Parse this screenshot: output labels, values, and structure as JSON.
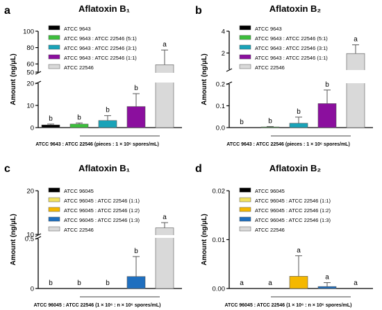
{
  "chart_data": [
    {
      "panel": "a",
      "type": "bar",
      "title": "Aflatoxin B₁",
      "ylabel": "Amount (ng/μL)",
      "xlabel": "ATCC 9643 : ATCC 22546 (pieces : 1 × 10⁶ spores/mL)",
      "y_lower_ticks": [
        "0",
        "10",
        "20"
      ],
      "y_upper_ticks": [
        "50",
        "60",
        "80",
        "100"
      ],
      "legend": [
        "ATCC 9643",
        "ATCC 9643 : ATCC 22546 (5:1)",
        "ATCC 9643 : ATCC 22546 (3:1)",
        "ATCC 9643 : ATCC 22546 (1:1)",
        "ATCC 22546"
      ],
      "colors": [
        "#000000",
        "#3cbf3c",
        "#1aa3b8",
        "#8b0f9e",
        "#d9d9d9"
      ],
      "values": [
        1.2,
        1.6,
        3.2,
        9.5,
        59
      ],
      "errors": [
        0.4,
        0.5,
        2.2,
        5.8,
        18
      ],
      "sig": [
        "b",
        "b",
        "b",
        "b",
        "a"
      ],
      "ylim": [
        0,
        100
      ]
    },
    {
      "panel": "b",
      "type": "bar",
      "title": "Aflatoxin B₂",
      "ylabel": "Amount (ng/μL)",
      "xlabel": "ATCC 9643 : ATCC 22546 (pieces : 1 × 10⁶ spores/mL)",
      "y_lower_ticks": [
        "0.0",
        "0.1",
        "0.2"
      ],
      "y_upper_ticks": [
        "2",
        "4"
      ],
      "legend": [
        "ATCC 9643",
        "ATCC 9643 : ATCC 22546 (5:1)",
        "ATCC 9643 : ATCC 22546 (3:1)",
        "ATCC 9643 : ATCC 22546 (1:1)",
        "ATCC 22546"
      ],
      "colors": [
        "#000000",
        "#3cbf3c",
        "#1aa3b8",
        "#8b0f9e",
        "#d9d9d9"
      ],
      "values": [
        0,
        0.003,
        0.02,
        0.11,
        1.95
      ],
      "errors": [
        0,
        0.002,
        0.028,
        0.062,
        0.8
      ],
      "sig": [
        "b",
        "b",
        "b",
        "b",
        "a"
      ],
      "ylim": [
        0,
        4
      ]
    },
    {
      "panel": "c",
      "type": "bar",
      "title": "Aflatoxin B₁",
      "ylabel": "Amount (ng/μL)",
      "xlabel": "ATCC 96045 : ATCC 22546 (1 × 10⁶ : n × 10⁶ spores/mL)",
      "y_lower_ticks": [
        "0",
        "0.5"
      ],
      "y_upper_ticks": [
        "10",
        "20"
      ],
      "legend": [
        "ATCC 96045",
        "ATCC 96045 : ATCC 22546 (1:1)",
        "ATCC 96045 : ATCC 22546 (1:2)",
        "ATCC 96045 : ATCC 22546 (1:3)",
        "ATCC 22546"
      ],
      "colors": [
        "#000000",
        "#f0e060",
        "#f5b800",
        "#1f6fbf",
        "#d9d9d9"
      ],
      "values": [
        0,
        0,
        0,
        0.12,
        11.5
      ],
      "errors": [
        0,
        0,
        0,
        0.2,
        1.2
      ],
      "sig": [
        "b",
        "b",
        "b",
        "b",
        "a"
      ],
      "ylim": [
        0,
        20
      ]
    },
    {
      "panel": "d",
      "type": "bar",
      "title": "Aflatoxin B₂",
      "ylabel": "Amount (ng/μL)",
      "xlabel": "ATCC 96045 : ATCC 22546 (1 × 10⁶ : n × 10⁶ spores/mL)",
      "y_ticks": [
        "0.00",
        "0.01",
        "0.02"
      ],
      "legend": [
        "ATCC 96045",
        "ATCC 96045 : ATCC 22546 (1:1)",
        "ATCC 96045 : ATCC 22546 (1:2)",
        "ATCC 96045 : ATCC 22546 (1:3)",
        "ATCC 22546"
      ],
      "colors": [
        "#000000",
        "#f0e060",
        "#f5b800",
        "#1f6fbf",
        "#d9d9d9"
      ],
      "values": [
        0,
        0,
        0.0025,
        0.0004,
        0
      ],
      "errors": [
        0,
        0,
        0.0042,
        0.0008,
        0
      ],
      "sig": [
        "a",
        "a",
        "a",
        "a",
        "a"
      ],
      "ylim": [
        0,
        0.02
      ]
    }
  ]
}
